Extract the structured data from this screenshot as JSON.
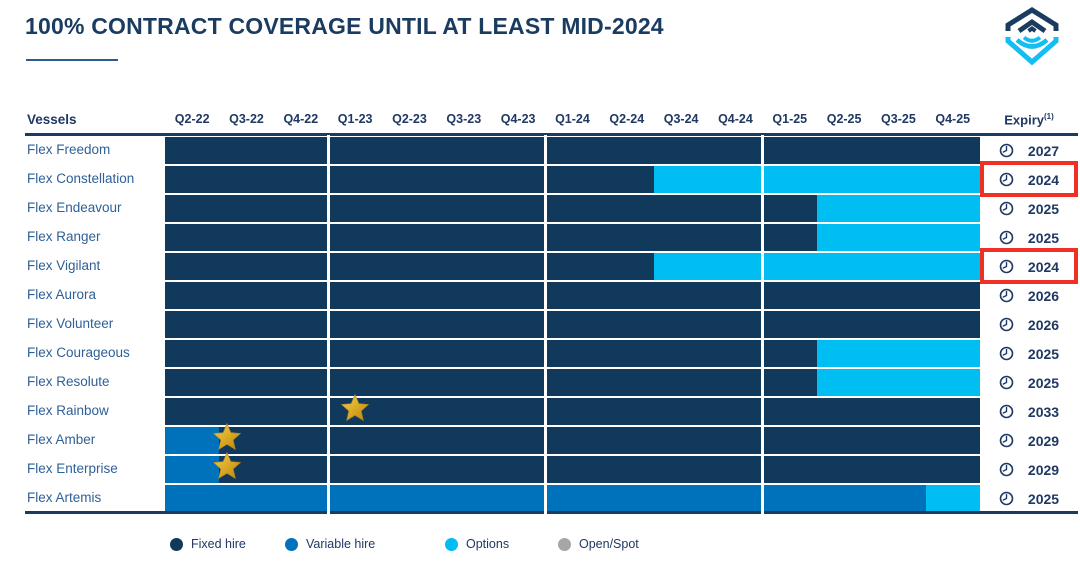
{
  "title": "100% CONTRACT COVERAGE UNTIL AT LEAST MID-2024",
  "logo_name": "flex-lng-logo",
  "table": {
    "vessels_header": "Vessels",
    "expiry_header": "Expiry",
    "expiry_footnote": "(1)"
  },
  "colors": {
    "fixed": "#11395C",
    "variable": "#0072BC",
    "options": "#00BDF2",
    "open_spot": "#A6A6A6",
    "red_box": "#EE3124",
    "header_text": "#1F3864",
    "vessel_text": "#2F6097",
    "star_gold_light": "#F2CF5B",
    "star_gold_dark": "#B8860B"
  },
  "chart_data": {
    "type": "bar",
    "subtype": "gantt-timeline",
    "title": "100% CONTRACT COVERAGE UNTIL AT LEAST MID-2024",
    "x_quarters": [
      "Q2-22",
      "Q3-22",
      "Q4-22",
      "Q1-23",
      "Q2-23",
      "Q3-23",
      "Q4-23",
      "Q1-24",
      "Q2-24",
      "Q3-24",
      "Q4-24",
      "Q1-25",
      "Q2-25",
      "Q3-25",
      "Q4-25"
    ],
    "year_separator_positions_quarters": [
      3,
      7,
      11
    ],
    "legend_position": "bottom",
    "legend": [
      {
        "label": "Fixed hire",
        "color_key": "fixed"
      },
      {
        "label": "Variable hire",
        "color_key": "variable"
      },
      {
        "label": "Options",
        "color_key": "options"
      },
      {
        "label": "Open/Spot",
        "color_key": "open_spot"
      }
    ],
    "rows": [
      {
        "vessel": "Flex Freedom",
        "segments": [
          {
            "type": "fixed",
            "quarters": 15
          }
        ],
        "expiry": "2027",
        "highlight": false
      },
      {
        "vessel": "Flex Constellation",
        "segments": [
          {
            "type": "fixed",
            "quarters": 9
          },
          {
            "type": "options",
            "quarters": 6
          }
        ],
        "expiry": "2024",
        "highlight": true
      },
      {
        "vessel": "Flex Endeavour",
        "segments": [
          {
            "type": "fixed",
            "quarters": 12
          },
          {
            "type": "options",
            "quarters": 3
          }
        ],
        "expiry": "2025",
        "highlight": false
      },
      {
        "vessel": "Flex Ranger",
        "segments": [
          {
            "type": "fixed",
            "quarters": 12
          },
          {
            "type": "options",
            "quarters": 3
          }
        ],
        "expiry": "2025",
        "highlight": false
      },
      {
        "vessel": "Flex Vigilant",
        "segments": [
          {
            "type": "fixed",
            "quarters": 9
          },
          {
            "type": "options",
            "quarters": 6
          }
        ],
        "expiry": "2024",
        "highlight": true
      },
      {
        "vessel": "Flex Aurora",
        "segments": [
          {
            "type": "fixed",
            "quarters": 15
          }
        ],
        "expiry": "2026",
        "highlight": false
      },
      {
        "vessel": "Flex Volunteer",
        "segments": [
          {
            "type": "fixed",
            "quarters": 15
          }
        ],
        "expiry": "2026",
        "highlight": false
      },
      {
        "vessel": "Flex Courageous",
        "segments": [
          {
            "type": "fixed",
            "quarters": 12
          },
          {
            "type": "options",
            "quarters": 3
          }
        ],
        "expiry": "2025",
        "highlight": false
      },
      {
        "vessel": "Flex Resolute",
        "segments": [
          {
            "type": "fixed",
            "quarters": 12
          },
          {
            "type": "options",
            "quarters": 3
          }
        ],
        "expiry": "2025",
        "highlight": false
      },
      {
        "vessel": "Flex Rainbow",
        "segments": [
          {
            "type": "fixed",
            "quarters": 15
          }
        ],
        "expiry": "2033",
        "highlight": false,
        "star_at_quarter": 3.5
      },
      {
        "vessel": "Flex Amber",
        "segments": [
          {
            "type": "variable",
            "quarters": 1
          },
          {
            "type": "fixed",
            "quarters": 14
          }
        ],
        "expiry": "2029",
        "highlight": false,
        "star_at_quarter": 1.15
      },
      {
        "vessel": "Flex Enterprise",
        "segments": [
          {
            "type": "variable",
            "quarters": 1
          },
          {
            "type": "fixed",
            "quarters": 14
          }
        ],
        "expiry": "2029",
        "highlight": false,
        "star_at_quarter": 1.15
      },
      {
        "vessel": "Flex Artemis",
        "segments": [
          {
            "type": "variable",
            "quarters": 14
          },
          {
            "type": "options",
            "quarters": 1
          }
        ],
        "expiry": "2025",
        "highlight": false
      }
    ]
  }
}
